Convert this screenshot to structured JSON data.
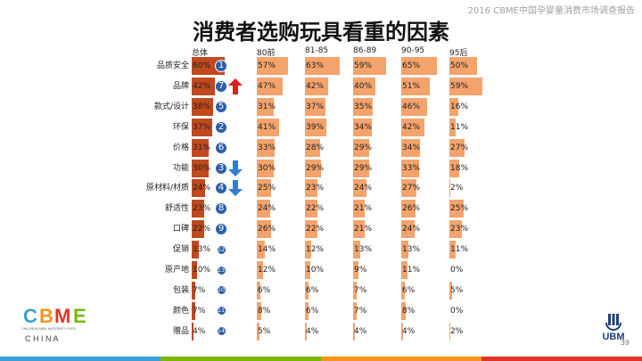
{
  "header_note": "2016 CBME中国孕婴童消费市场调查报告",
  "title": "消费者选购玩具看重的因素",
  "page_number": "39",
  "logos": {
    "cbme_letters": [
      "C",
      "B",
      "M",
      "E"
    ],
    "cbme_tagline": "CHILDREN BABY MATERNITY EXPO",
    "cbme_country": "C H I N A",
    "ubm": "UBM"
  },
  "colors": {
    "total_bar": "#c0491d",
    "segment_bar": "#f4a36c",
    "rank_badge": "#2d5fa9",
    "arrow_up": "#e02020",
    "arrow_down": "#2d7fd0",
    "footer_stripe": [
      "#3aa0d8",
      "#7ab800",
      "#f7941d",
      "#e2332a"
    ]
  },
  "chart_data": {
    "type": "bar",
    "columns": [
      "总体",
      "80前",
      "81-85",
      "86-89",
      "90-95",
      "95后"
    ],
    "categories": [
      "品质安全",
      "品牌",
      "款式/设计",
      "环保",
      "价格",
      "功能",
      "原材料/材质",
      "舒适性",
      "口碑",
      "促销",
      "原产地",
      "包装",
      "颜色",
      "赠品"
    ],
    "series": [
      {
        "name": "总体",
        "values": [
          60,
          42,
          38,
          37,
          31,
          30,
          24,
          23,
          22,
          13,
          10,
          7,
          7,
          4
        ]
      },
      {
        "name": "80前",
        "values": [
          57,
          47,
          31,
          41,
          33,
          30,
          25,
          24,
          26,
          14,
          12,
          6,
          8,
          5
        ]
      },
      {
        "name": "81-85",
        "values": [
          63,
          42,
          37,
          39,
          28,
          29,
          23,
          22,
          22,
          12,
          10,
          6,
          6,
          4
        ]
      },
      {
        "name": "86-89",
        "values": [
          59,
          40,
          35,
          34,
          29,
          29,
          24,
          21,
          21,
          13,
          9,
          7,
          7,
          4
        ]
      },
      {
        "name": "90-95",
        "values": [
          65,
          51,
          46,
          42,
          34,
          33,
          27,
          26,
          24,
          13,
          11,
          6,
          8,
          4
        ]
      },
      {
        "name": "95后",
        "values": [
          50,
          59,
          16,
          11,
          27,
          18,
          2,
          25,
          23,
          11,
          0,
          5,
          0,
          2
        ]
      }
    ],
    "value_labels": [
      [
        "60%",
        "42%",
        "38%",
        "37%",
        "31%",
        "30%",
        "24%",
        "23%",
        "22%",
        "13%",
        "10%",
        "7%",
        "7%",
        "4%"
      ],
      [
        "57%",
        "47%",
        "31%",
        "41%",
        "33%",
        "30%",
        "25%",
        "24%",
        "26%",
        "14%",
        "12%",
        "6%",
        "8%",
        "5%"
      ],
      [
        "63%",
        "42%",
        "37%",
        "39%",
        "28%",
        "29%",
        "23%",
        "22%",
        "22%",
        "12%",
        "10%",
        "6%",
        "6%",
        "4%"
      ],
      [
        "59%",
        "40%",
        "35%",
        "34%",
        "29%",
        "29%",
        "24%",
        "21%",
        "21%",
        "13%",
        "9%",
        "7%",
        "7%",
        "4%"
      ],
      [
        "65%",
        "51%",
        "46%",
        "42%",
        "34%",
        "33%",
        "27%",
        "26%",
        "24%",
        "13%",
        "11%",
        "6%",
        "8%",
        "4%"
      ],
      [
        "50%",
        "59%",
        "16%",
        "11%",
        "27%",
        "18%",
        "2%",
        "25%",
        "23%",
        "11%",
        "0%",
        "5%",
        "0%",
        "2%"
      ]
    ],
    "ranks": [
      "1",
      "7",
      "5",
      "2",
      "6",
      "3",
      "4",
      "8",
      "9",
      "12",
      "13",
      "10",
      "11",
      "14"
    ],
    "rank_changes": [
      "none",
      "up",
      "none",
      "none",
      "none",
      "down",
      "down",
      "none",
      "none",
      "none",
      "none",
      "none",
      "none",
      "none"
    ],
    "unit": "%",
    "legend": "none",
    "grid": false
  }
}
